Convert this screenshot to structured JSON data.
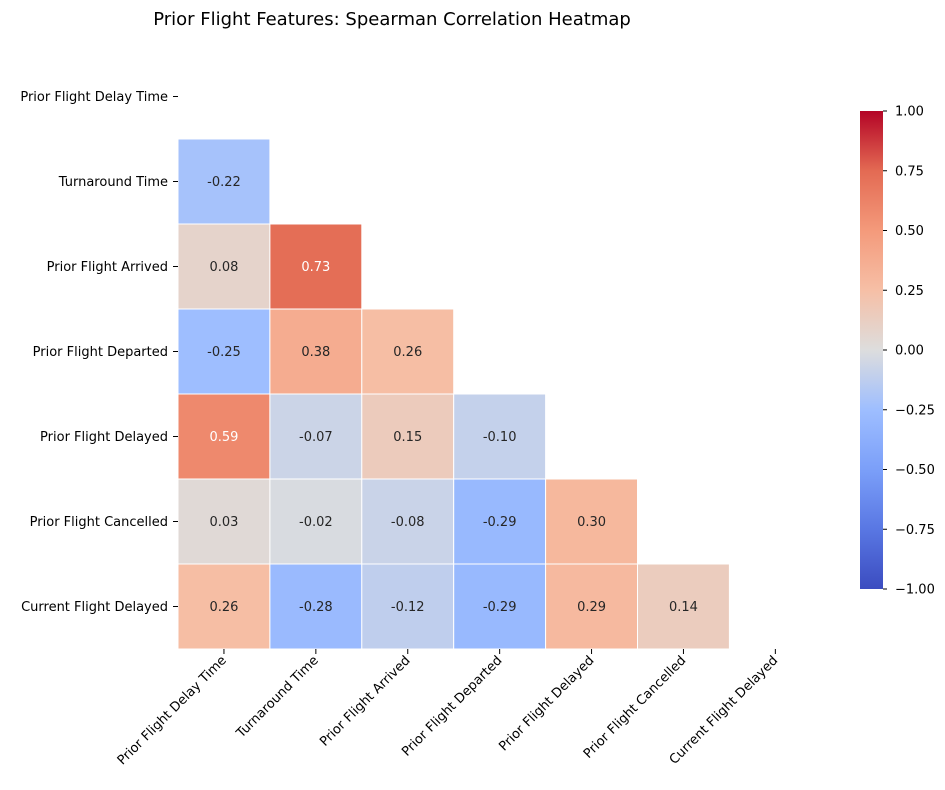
{
  "chart_data": {
    "type": "heatmap",
    "title": "Prior Flight Features: Spearman Correlation Heatmap",
    "row_labels": [
      "Prior Flight Delay Time",
      "Turnaround Time",
      "Prior Flight Arrived",
      "Prior Flight Departed",
      "Prior Flight Delayed",
      "Prior Flight Cancelled",
      "Current Flight Delayed"
    ],
    "col_labels": [
      "Prior Flight Delay Time",
      "Turnaround Time",
      "Prior Flight Arrived",
      "Prior Flight Departed",
      "Prior Flight Delayed",
      "Prior Flight Cancelled",
      "Current Flight Delayed"
    ],
    "values": [
      [
        null,
        null,
        null,
        null,
        null,
        null,
        null
      ],
      [
        -0.22,
        null,
        null,
        null,
        null,
        null,
        null
      ],
      [
        0.08,
        0.73,
        null,
        null,
        null,
        null,
        null
      ],
      [
        -0.25,
        0.38,
        0.26,
        null,
        null,
        null,
        null
      ],
      [
        0.59,
        -0.07,
        0.15,
        -0.1,
        null,
        null,
        null
      ],
      [
        0.03,
        -0.02,
        -0.08,
        -0.29,
        0.3,
        null,
        null
      ],
      [
        0.26,
        -0.28,
        -0.12,
        -0.29,
        0.29,
        0.14,
        null
      ]
    ],
    "value_labels": [
      [
        null,
        null,
        null,
        null,
        null,
        null,
        null
      ],
      [
        "-0.22",
        null,
        null,
        null,
        null,
        null,
        null
      ],
      [
        "0.08",
        "0.73",
        null,
        null,
        null,
        null,
        null
      ],
      [
        "-0.25",
        "0.38",
        "0.26",
        null,
        null,
        null,
        null
      ],
      [
        "0.59",
        "-0.07",
        "0.15",
        "-0.10",
        null,
        null,
        null
      ],
      [
        "0.03",
        "-0.02",
        "-0.08",
        "-0.29",
        "0.30",
        null,
        null
      ],
      [
        "0.26",
        "-0.28",
        "-0.12",
        "-0.29",
        "0.29",
        "0.14",
        null
      ]
    ],
    "colormap": "coolwarm",
    "vmin": -1.0,
    "vmax": 1.0,
    "mask": "upper-triangle-including-diagonal",
    "colorbar": {
      "ticks": [
        1.0,
        0.75,
        0.5,
        0.25,
        0.0,
        -0.25,
        -0.5,
        -0.75,
        -1.0
      ],
      "tick_labels": [
        "1.00",
        "0.75",
        "0.50",
        "0.25",
        "0.00",
        "−0.25",
        "−0.50",
        "−0.75",
        "−1.00"
      ],
      "placement": "right"
    }
  }
}
